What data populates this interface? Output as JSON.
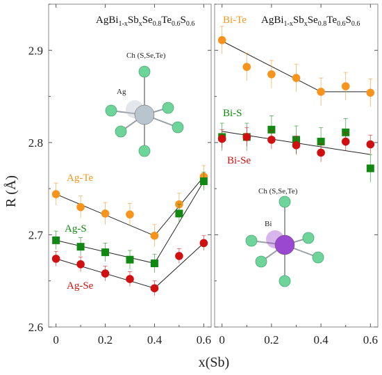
{
  "chart_data": [
    {
      "panel": "left",
      "type": "scatter",
      "title_parts": [
        {
          "t": "AgBi",
          "sub": false
        },
        {
          "t": "1-x",
          "sub": true
        },
        {
          "t": "Sb",
          "sub": false
        },
        {
          "t": "x",
          "sub": true
        },
        {
          "t": "Se",
          "sub": false
        },
        {
          "t": "0.8",
          "sub": true
        },
        {
          "t": "Te",
          "sub": false
        },
        {
          "t": "0.6",
          "sub": true
        },
        {
          "t": "S",
          "sub": false
        },
        {
          "t": "0.6",
          "sub": true
        }
      ],
      "xlabel": "x(Sb)",
      "ylabel": "R (Å)",
      "xlim": [
        -0.03,
        0.63
      ],
      "ylim": [
        2.6,
        2.95
      ],
      "xticks": [
        0,
        0.2,
        0.4,
        0.6
      ],
      "xtick_labels": [
        "0",
        "0.2",
        "0.4",
        "0.6"
      ],
      "yticks": [
        2.6,
        2.7,
        2.8,
        2.9
      ],
      "ytick_labels": [
        "2.6",
        "2.7",
        "2.8",
        "2.9"
      ],
      "series": [
        {
          "name": "Ag-Te",
          "color": "#F7941D",
          "marker": "circle",
          "x": [
            0,
            0.1,
            0.2,
            0.3,
            0.4,
            0.5,
            0.6
          ],
          "y": [
            2.744,
            2.73,
            2.723,
            2.722,
            2.699,
            2.733,
            2.763
          ],
          "err": [
            0.012,
            0.012,
            0.012,
            0.012,
            0.012,
            0.012,
            0.012
          ],
          "fit": [
            [
              0,
              2.744
            ],
            [
              0.4,
              2.699
            ],
            [
              0.6,
              2.763
            ]
          ]
        },
        {
          "name": "Ag-S",
          "color": "#118811",
          "marker": "square",
          "x": [
            0,
            0.1,
            0.2,
            0.3,
            0.4,
            0.5,
            0.6
          ],
          "y": [
            2.694,
            2.687,
            2.681,
            2.673,
            2.669,
            2.723,
            2.758
          ],
          "err": [
            0.01,
            0.01,
            0.01,
            0.01,
            0.01,
            0.01,
            0.01
          ],
          "fit": [
            [
              0,
              2.694
            ],
            [
              0.4,
              2.669
            ],
            [
              0.6,
              2.758
            ]
          ]
        },
        {
          "name": "Ag-Se",
          "color": "#D01010",
          "marker": "circle",
          "x": [
            0,
            0.1,
            0.2,
            0.3,
            0.4,
            0.5,
            0.6
          ],
          "y": [
            2.674,
            2.668,
            2.658,
            2.652,
            2.642,
            2.677,
            2.691
          ],
          "err": [
            0.008,
            0.008,
            0.008,
            0.008,
            0.008,
            0.008,
            0.008
          ],
          "fit": [
            [
              0,
              2.674
            ],
            [
              0.4,
              2.642
            ],
            [
              0.6,
              2.691
            ]
          ]
        }
      ],
      "inset_labels": {
        "ligand": "Ch (S,Se,Te)",
        "center": "Ag"
      },
      "inset_colors": {
        "center": "#B8C4CE",
        "ligand": "#6FD49A"
      }
    },
    {
      "panel": "right",
      "type": "scatter",
      "title_parts": [
        {
          "t": "AgBi",
          "sub": false
        },
        {
          "t": "1-x",
          "sub": true
        },
        {
          "t": "Sb",
          "sub": false
        },
        {
          "t": "x",
          "sub": true
        },
        {
          "t": "Se",
          "sub": false
        },
        {
          "t": "0.8",
          "sub": true
        },
        {
          "t": "Te",
          "sub": false
        },
        {
          "t": "0.6",
          "sub": true
        },
        {
          "t": "S",
          "sub": false
        },
        {
          "t": "0.6",
          "sub": true
        }
      ],
      "xlabel": "x(Sb)",
      "xlim": [
        -0.03,
        0.63
      ],
      "ylim": [
        2.6,
        2.95
      ],
      "xticks": [
        0,
        0.2,
        0.4,
        0.6
      ],
      "xtick_labels": [
        "0",
        "0.2",
        "0.4",
        "0.6"
      ],
      "series": [
        {
          "name": "Bi-Te",
          "color": "#F7941D",
          "marker": "circle",
          "x": [
            0,
            0.1,
            0.2,
            0.3,
            0.4,
            0.5,
            0.6
          ],
          "y": [
            2.911,
            2.882,
            2.874,
            2.87,
            2.855,
            2.861,
            2.854
          ],
          "err": [
            0.015,
            0.015,
            0.015,
            0.015,
            0.015,
            0.015,
            0.015
          ],
          "fit": [
            [
              0,
              2.91
            ],
            [
              0.4,
              2.855
            ],
            [
              0.6,
              2.855
            ]
          ]
        },
        {
          "name": "Bi-S",
          "color": "#118811",
          "marker": "square",
          "x": [
            0,
            0.1,
            0.2,
            0.3,
            0.4,
            0.5,
            0.6
          ],
          "y": [
            2.806,
            2.806,
            2.814,
            2.803,
            2.801,
            2.811,
            2.772
          ],
          "err": [
            0.015,
            0.015,
            0.015,
            0.015,
            0.015,
            0.015,
            0.015
          ],
          "fit": [
            [
              0,
              2.812
            ],
            [
              0.6,
              2.787
            ]
          ]
        },
        {
          "name": "Bi-Se",
          "color": "#D01010",
          "marker": "circle",
          "x": [
            0,
            0.1,
            0.2,
            0.3,
            0.4,
            0.5,
            0.6
          ],
          "y": [
            2.804,
            2.806,
            2.803,
            2.797,
            2.789,
            2.801,
            2.798
          ],
          "err": [
            0.01,
            0.01,
            0.01,
            0.01,
            0.01,
            0.01,
            0.01
          ],
          "fit": []
        }
      ],
      "inset_labels": {
        "ligand": "Ch (S,Se,Te)",
        "center": "Bi"
      },
      "inset_colors": {
        "center": "#9A48D0",
        "ligand": "#6FD49A"
      }
    }
  ]
}
